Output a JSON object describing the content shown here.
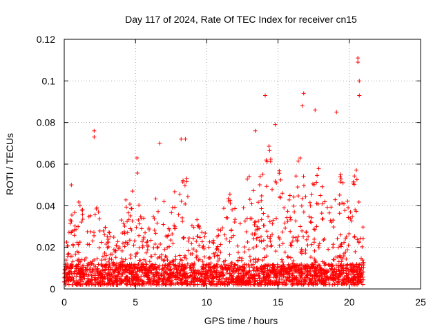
{
  "chart_data": {
    "type": "scatter",
    "title": "Day 117 of 2024, Rate Of TEC Index for receiver cn15",
    "xlabel": "GPS time / hours",
    "ylabel": "ROTI / TECUs",
    "xlim": [
      0,
      25
    ],
    "ylim": [
      0,
      0.12
    ],
    "xticks": [
      0,
      5,
      10,
      15,
      20,
      25
    ],
    "yticks": [
      0,
      0.02,
      0.04,
      0.06,
      0.08,
      0.1,
      0.12
    ],
    "xtick_labels": [
      "0",
      "5",
      "10",
      "15",
      "20",
      "25"
    ],
    "ytick_labels": [
      "0",
      "0.02",
      "0.04",
      "0.06",
      "0.08",
      "0.1",
      "0.12"
    ],
    "grid": true,
    "marker": "+",
    "series": [
      {
        "name": "ROTI",
        "color": "#ff0000",
        "x_range": [
          0,
          21
        ],
        "notable_points": [
          {
            "x": 0.5,
            "y": 0.05
          },
          {
            "x": 2.1,
            "y": 0.076
          },
          {
            "x": 2.1,
            "y": 0.073
          },
          {
            "x": 5.1,
            "y": 0.063
          },
          {
            "x": 6.7,
            "y": 0.07
          },
          {
            "x": 8.2,
            "y": 0.072
          },
          {
            "x": 8.5,
            "y": 0.072
          },
          {
            "x": 13.4,
            "y": 0.076
          },
          {
            "x": 14.1,
            "y": 0.093
          },
          {
            "x": 14.8,
            "y": 0.079
          },
          {
            "x": 16.8,
            "y": 0.094
          },
          {
            "x": 16.7,
            "y": 0.088
          },
          {
            "x": 17.6,
            "y": 0.086
          },
          {
            "x": 19.1,
            "y": 0.085
          },
          {
            "x": 20.6,
            "y": 0.111
          },
          {
            "x": 20.6,
            "y": 0.109
          },
          {
            "x": 20.7,
            "y": 0.1
          },
          {
            "x": 20.7,
            "y": 0.093
          }
        ],
        "envelope": [
          {
            "x": 0.0,
            "y": 0.02
          },
          {
            "x": 0.4,
            "y": 0.034
          },
          {
            "x": 0.9,
            "y": 0.042
          },
          {
            "x": 1.4,
            "y": 0.043
          },
          {
            "x": 2.0,
            "y": 0.035
          },
          {
            "x": 2.7,
            "y": 0.046
          },
          {
            "x": 3.2,
            "y": 0.028
          },
          {
            "x": 3.8,
            "y": 0.025
          },
          {
            "x": 4.2,
            "y": 0.044
          },
          {
            "x": 4.8,
            "y": 0.05
          },
          {
            "x": 5.2,
            "y": 0.058
          },
          {
            "x": 5.7,
            "y": 0.028
          },
          {
            "x": 6.2,
            "y": 0.032
          },
          {
            "x": 6.7,
            "y": 0.066
          },
          {
            "x": 7.2,
            "y": 0.03
          },
          {
            "x": 7.6,
            "y": 0.043
          },
          {
            "x": 8.1,
            "y": 0.066
          },
          {
            "x": 8.5,
            "y": 0.07
          },
          {
            "x": 9.0,
            "y": 0.035
          },
          {
            "x": 9.6,
            "y": 0.032
          },
          {
            "x": 10.2,
            "y": 0.028
          },
          {
            "x": 10.8,
            "y": 0.032
          },
          {
            "x": 11.3,
            "y": 0.05
          },
          {
            "x": 11.8,
            "y": 0.048
          },
          {
            "x": 12.3,
            "y": 0.045
          },
          {
            "x": 12.8,
            "y": 0.06
          },
          {
            "x": 13.3,
            "y": 0.05
          },
          {
            "x": 13.8,
            "y": 0.058
          },
          {
            "x": 14.3,
            "y": 0.07
          },
          {
            "x": 14.8,
            "y": 0.068
          },
          {
            "x": 15.3,
            "y": 0.05
          },
          {
            "x": 15.8,
            "y": 0.048
          },
          {
            "x": 16.3,
            "y": 0.062
          },
          {
            "x": 16.8,
            "y": 0.065
          },
          {
            "x": 17.3,
            "y": 0.048
          },
          {
            "x": 17.8,
            "y": 0.06
          },
          {
            "x": 18.3,
            "y": 0.045
          },
          {
            "x": 18.8,
            "y": 0.05
          },
          {
            "x": 19.3,
            "y": 0.06
          },
          {
            "x": 19.8,
            "y": 0.05
          },
          {
            "x": 20.3,
            "y": 0.055
          },
          {
            "x": 20.7,
            "y": 0.06
          },
          {
            "x": 21.0,
            "y": 0.03
          }
        ],
        "baseline_range": [
          0.002,
          0.012
        ]
      }
    ]
  }
}
